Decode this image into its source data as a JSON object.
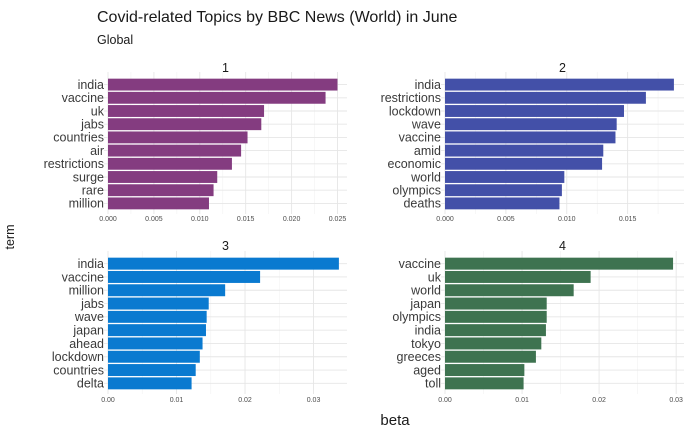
{
  "chart_data": {
    "type": "bar",
    "title": "Covid-related Topics by BBC News (World) in June",
    "subtitle": "Global",
    "xlabel": "beta",
    "ylabel": "term",
    "grid": true,
    "orientation": "horizontal",
    "facets": [
      {
        "label": "1",
        "color": "#843c80",
        "xlim": [
          0,
          0.0256
        ],
        "ticks": [
          "0.000",
          "0.005",
          "0.010",
          "0.015",
          "0.020",
          "0.025"
        ],
        "tick_values": [
          0,
          0.005,
          0.01,
          0.015,
          0.02,
          0.025
        ],
        "categories": [
          "india",
          "vaccine",
          "uk",
          "jabs",
          "countries",
          "air",
          "restrictions",
          "surge",
          "rare",
          "million"
        ],
        "values": [
          0.025,
          0.0237,
          0.017,
          0.0167,
          0.0152,
          0.0145,
          0.0135,
          0.0119,
          0.0115,
          0.011
        ]
      },
      {
        "label": "2",
        "color": "#4350a8",
        "xlim": [
          0,
          0.0193
        ],
        "ticks": [
          "0.000",
          "0.005",
          "0.010",
          "0.015"
        ],
        "tick_values": [
          0,
          0.005,
          0.01,
          0.015
        ],
        "categories": [
          "india",
          "restrictions",
          "lockdown",
          "wave",
          "vaccine",
          "amid",
          "economic",
          "world",
          "olympics",
          "deaths"
        ],
        "values": [
          0.0188,
          0.0165,
          0.0147,
          0.0141,
          0.014,
          0.013,
          0.0129,
          0.0098,
          0.0096,
          0.0094
        ]
      },
      {
        "label": "3",
        "color": "#0a7ad0",
        "xlim": [
          0,
          0.0343
        ],
        "ticks": [
          "0.00",
          "0.01",
          "0.02",
          "0.03"
        ],
        "tick_values": [
          0,
          0.01,
          0.02,
          0.03
        ],
        "categories": [
          "india",
          "vaccine",
          "million",
          "jabs",
          "wave",
          "japan",
          "ahead",
          "lockdown",
          "countries",
          "delta"
        ],
        "values": [
          0.0337,
          0.0222,
          0.0171,
          0.0147,
          0.0144,
          0.0143,
          0.0138,
          0.0134,
          0.0128,
          0.0122
        ]
      },
      {
        "label": "4",
        "color": "#3e7350",
        "xlim": [
          0,
          0.0305
        ],
        "ticks": [
          "0.00",
          "0.01",
          "0.02",
          "0.03"
        ],
        "tick_values": [
          0,
          0.01,
          0.02,
          0.03
        ],
        "categories": [
          "vaccine",
          "uk",
          "world",
          "japan",
          "olympics",
          "india",
          "tokyo",
          "greeces",
          "aged",
          "toll"
        ],
        "values": [
          0.0296,
          0.0189,
          0.0167,
          0.0132,
          0.0132,
          0.0131,
          0.0125,
          0.0118,
          0.0103,
          0.0102
        ]
      }
    ]
  }
}
